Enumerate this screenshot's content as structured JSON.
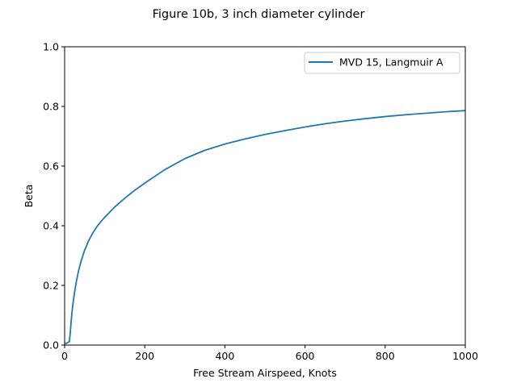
{
  "chart_data": {
    "type": "line",
    "title": "Figure 10b, 3 inch diameter cylinder",
    "xlabel": "Free Stream Airspeed, Knots",
    "ylabel": "Beta",
    "xlim": [
      0,
      1000
    ],
    "ylim": [
      0.0,
      1.0
    ],
    "xticks": [
      0,
      200,
      400,
      600,
      800,
      1000
    ],
    "xtick_labels": [
      "0",
      "200",
      "400",
      "600",
      "800",
      "1000"
    ],
    "yticks": [
      0.0,
      0.2,
      0.4,
      0.6,
      0.8,
      1.0
    ],
    "ytick_labels": [
      "0.0",
      "0.2",
      "0.4",
      "0.6",
      "0.8",
      "1.0"
    ],
    "grid": false,
    "legend_position": "top-right",
    "series": [
      {
        "name": "MVD 15, Langmuir A",
        "color": "#1f77b4",
        "x": [
          1,
          5,
          12,
          14,
          16,
          18,
          20,
          23,
          26,
          30,
          35,
          40,
          45,
          50,
          60,
          70,
          80,
          90,
          100,
          125,
          150,
          175,
          200,
          250,
          300,
          350,
          400,
          450,
          500,
          550,
          600,
          650,
          700,
          750,
          800,
          850,
          900,
          950,
          1000
        ],
        "y": [
          0.006,
          0.006,
          0.012,
          0.04,
          0.075,
          0.105,
          0.13,
          0.16,
          0.187,
          0.218,
          0.25,
          0.276,
          0.298,
          0.318,
          0.35,
          0.375,
          0.396,
          0.413,
          0.428,
          0.463,
          0.492,
          0.519,
          0.543,
          0.588,
          0.625,
          0.653,
          0.674,
          0.691,
          0.706,
          0.719,
          0.731,
          0.742,
          0.751,
          0.759,
          0.766,
          0.772,
          0.777,
          0.782,
          0.786
        ]
      }
    ]
  }
}
